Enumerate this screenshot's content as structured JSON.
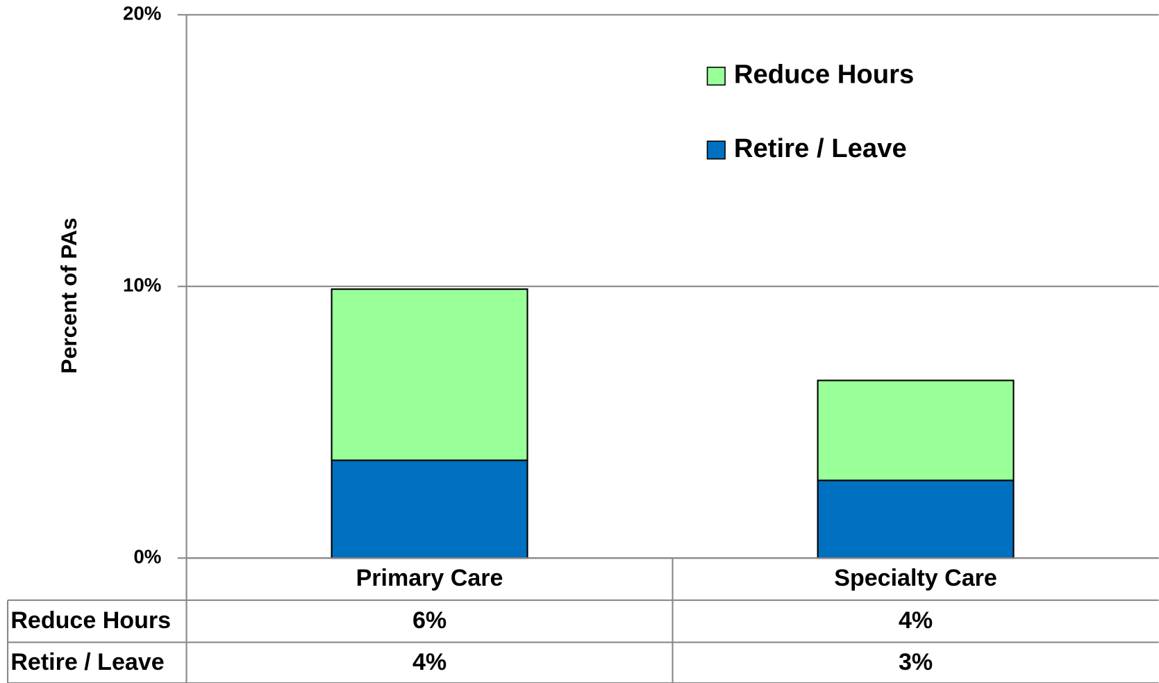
{
  "chart_data": {
    "type": "stacked_bar",
    "y_label": "Percent of PAs",
    "categories": [
      "Primary  Care",
      "Specialty Care"
    ],
    "series": [
      {
        "name": "Retire / Leave",
        "color": "#0070c0",
        "values": [
          3.6,
          2.86
        ],
        "value_labels": [
          "4%",
          "3%"
        ]
      },
      {
        "name": "Reduce Hours",
        "color": "#99ff99",
        "values": [
          6.3,
          3.68
        ],
        "value_labels": [
          "6%",
          "4%"
        ]
      }
    ],
    "ylim": [
      0,
      20
    ],
    "yticks": [
      {
        "value": 0,
        "label": "0%"
      },
      {
        "value": 10,
        "label": "10%"
      },
      {
        "value": 20,
        "label": "20%"
      }
    ],
    "grid": true,
    "legend": "top-right",
    "data_table": true
  }
}
